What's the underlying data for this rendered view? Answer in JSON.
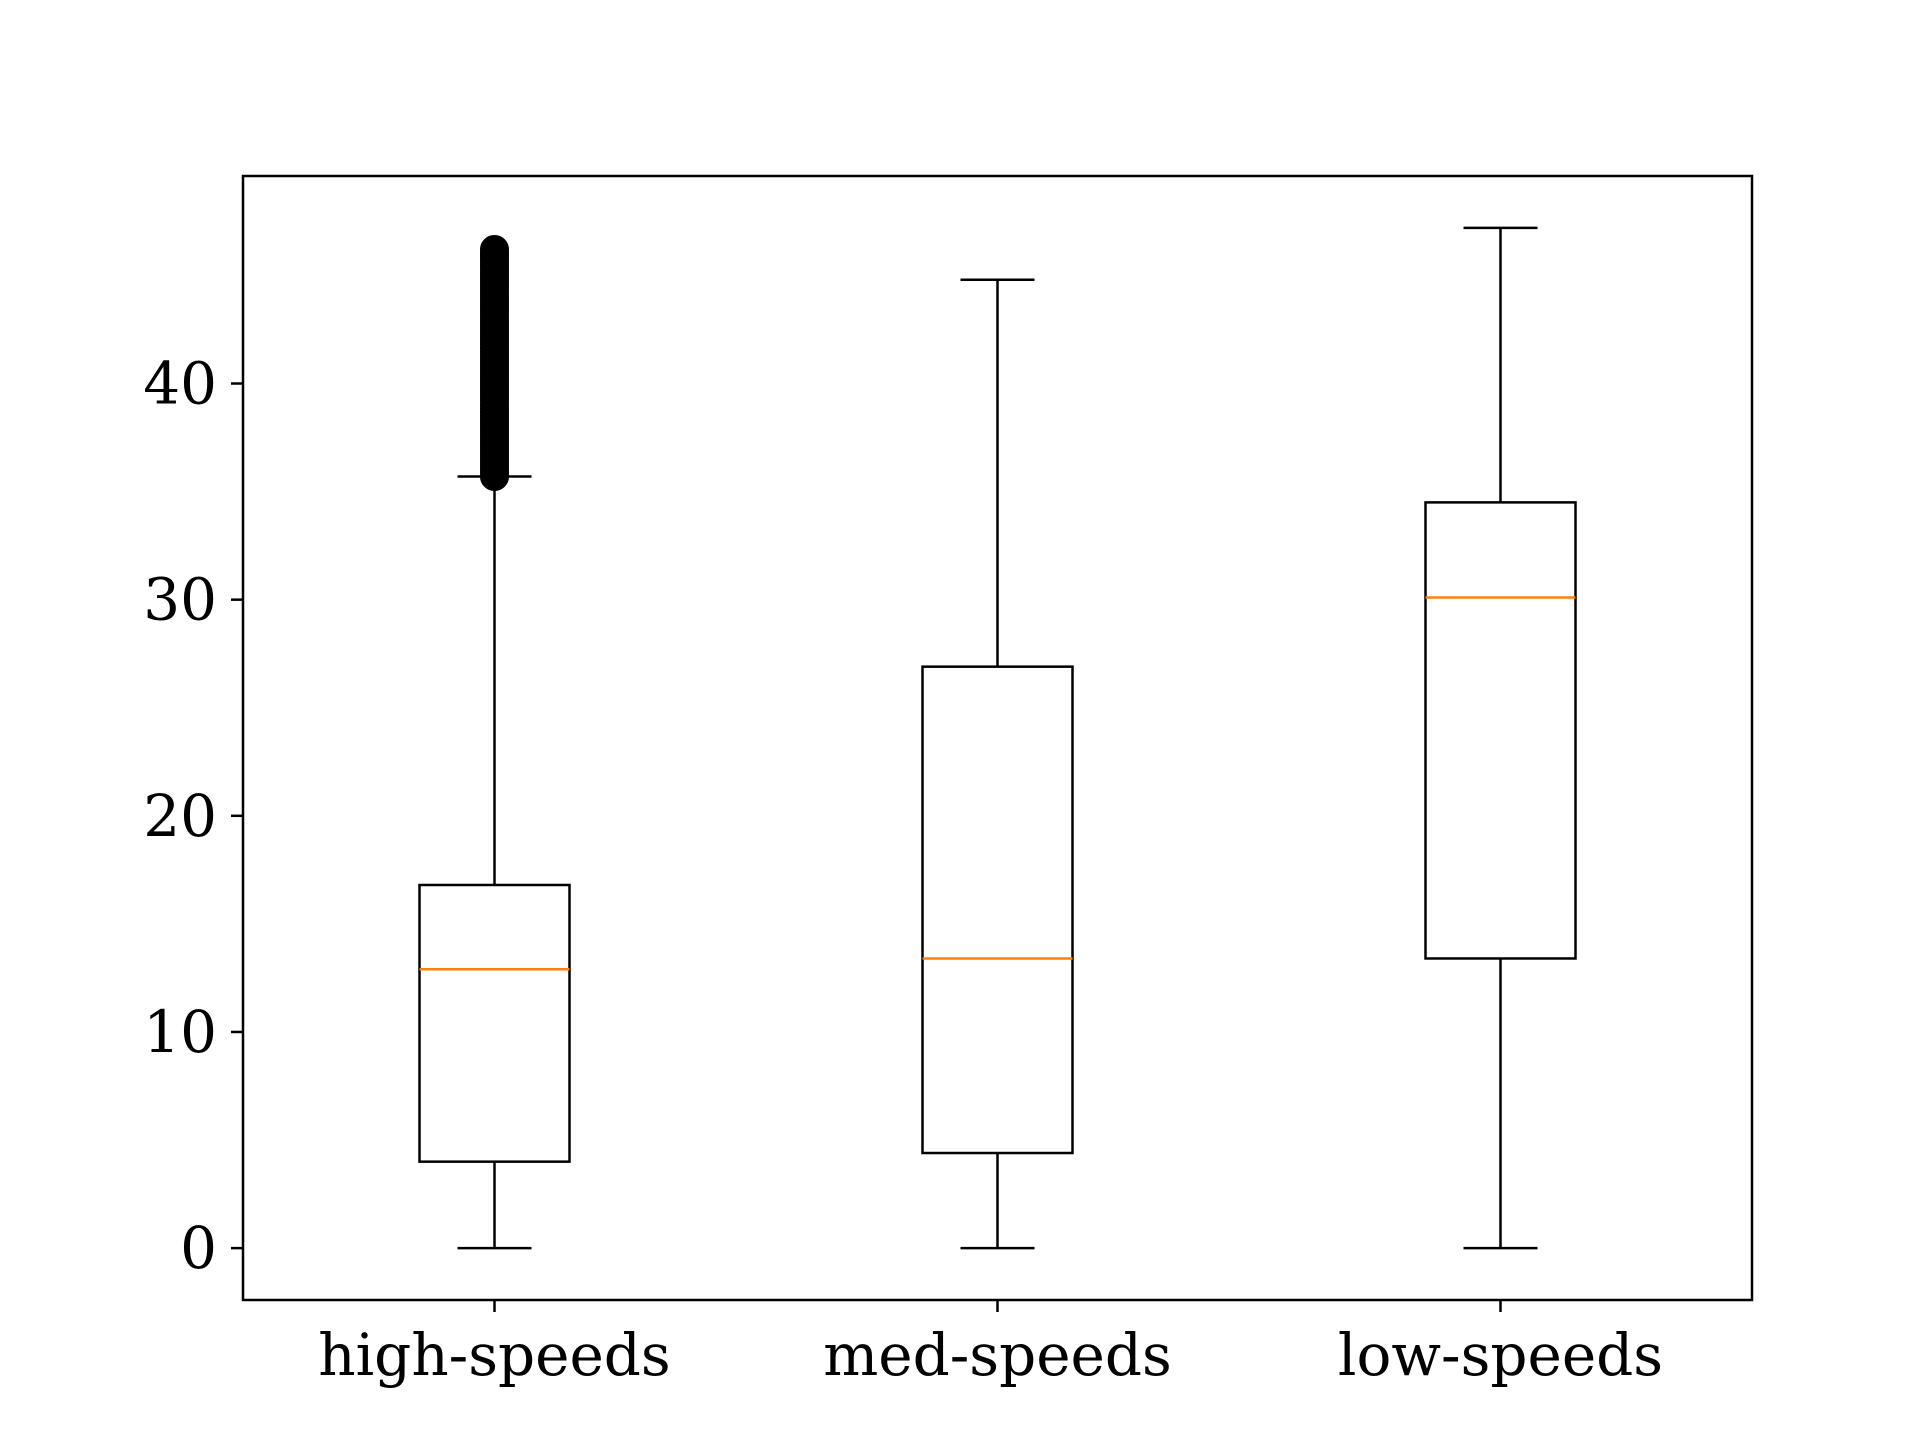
{
  "chart_data": {
    "type": "box",
    "categories": [
      "high-speeds",
      "med-speeds",
      "low-speeds"
    ],
    "series": [
      {
        "boxes": [
          {
            "category": "high-speeds",
            "whisker_low": 0,
            "q1": 4.0,
            "median": 12.9,
            "q3": 16.8,
            "whisker_high": 35.7,
            "outliers_range": [
              35.7,
              46.2
            ]
          },
          {
            "category": "med-speeds",
            "whisker_low": 0,
            "q1": 4.4,
            "median": 13.4,
            "q3": 26.9,
            "whisker_high": 44.8
          },
          {
            "category": "low-speeds",
            "whisker_low": 0,
            "q1": 13.4,
            "median": 30.1,
            "q3": 34.5,
            "whisker_high": 47.2
          }
        ]
      }
    ],
    "yticks": [
      0,
      10,
      20,
      30,
      40
    ],
    "ylim": [
      -2.4,
      49.6
    ],
    "grid": false,
    "legend": "none",
    "title": "",
    "xlabel": "",
    "ylabel": ""
  },
  "colors": {
    "box_edge": "#000000",
    "median": "#ff7f0e",
    "background": "#ffffff"
  }
}
